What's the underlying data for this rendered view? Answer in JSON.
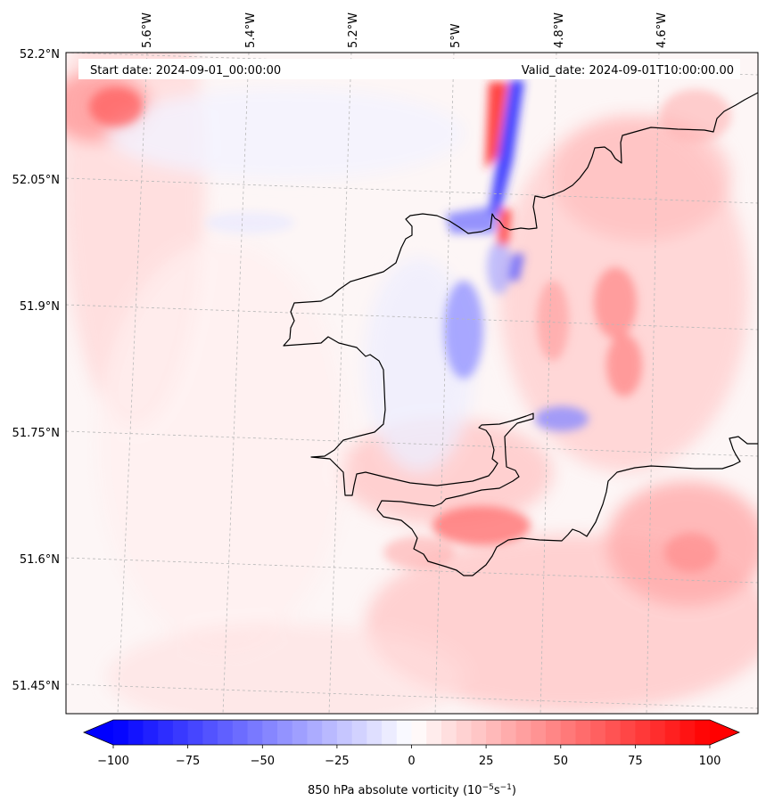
{
  "map": {
    "start_label": "Start date: 2024-09-01_00:00:00",
    "valid_label": "Valid_date: 2024-09-01T10:00:00.00",
    "lon_ticks": [
      "5.6°W",
      "5.4°W",
      "5.2°W",
      "5°W",
      "4.8°W",
      "4.6°W"
    ],
    "lat_ticks": [
      "52.2°N",
      "52.05°N",
      "51.9°N",
      "51.75°N",
      "51.6°N",
      "51.45°N"
    ]
  },
  "colorbar": {
    "ticks": [
      "−100",
      "−75",
      "−50",
      "−25",
      "0",
      "25",
      "50",
      "75",
      "100"
    ],
    "label_main": "850 hPa absolute vorticity (10",
    "label_exp1": "−5",
    "label_mid": "s",
    "label_exp2": "−1",
    "label_end": ")",
    "neg_color": "#0000ff",
    "pos_color": "#ff0000"
  },
  "colors": {
    "coast": "#000000",
    "grid": "#b0b0b0"
  }
}
